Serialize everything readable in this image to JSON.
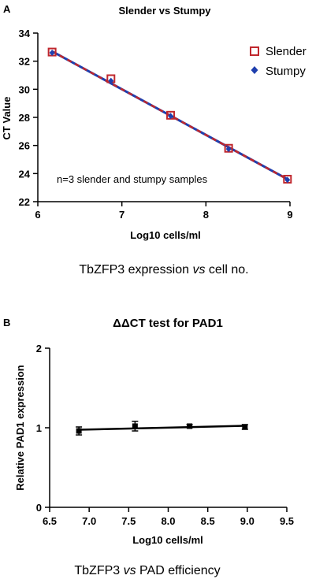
{
  "figure": {
    "caption_a_pre": "TbZFP3 expression ",
    "caption_a_em": "vs",
    "caption_a_post": " cell no.",
    "caption_b_pre": "TbZFP3 ",
    "caption_b_em": "vs",
    "caption_b_post": " PAD efficiency"
  },
  "chart_data": [
    {
      "panel_label": "A",
      "type": "scatter",
      "title": "Slender vs Stumpy",
      "xlabel": "Log10 cells/ml",
      "ylabel": "CT Value",
      "xlim": [
        6,
        9
      ],
      "ylim": [
        22,
        34
      ],
      "xticks": [
        6,
        7,
        8,
        9
      ],
      "yticks": [
        22,
        24,
        26,
        28,
        30,
        32,
        34
      ],
      "grid": false,
      "legend_position": "top-right",
      "annotation": "n=3 slender and stumpy samples",
      "series": [
        {
          "name": "Slender",
          "marker": "open-square",
          "color": "#c0272d",
          "x": [
            6.17,
            6.87,
            7.58,
            8.27,
            8.97
          ],
          "y": [
            32.65,
            30.75,
            28.15,
            25.8,
            23.6
          ]
        },
        {
          "name": "Stumpy",
          "marker": "diamond",
          "color": "#1f3fae",
          "x": [
            6.17,
            6.87,
            7.58,
            8.27,
            8.97
          ],
          "y": [
            32.6,
            30.6,
            28.1,
            25.75,
            23.55
          ]
        }
      ],
      "fit_line": {
        "x": [
          6.17,
          8.97
        ],
        "y": [
          32.7,
          23.6
        ],
        "colors": [
          "#1f3fae",
          "#c0272d"
        ]
      }
    },
    {
      "panel_label": "B",
      "type": "scatter",
      "title": "ΔΔCT test for PAD1",
      "xlabel": "Log10 cells/ml",
      "ylabel": "Relative PAD1 expression",
      "xlim": [
        6.5,
        9.5
      ],
      "ylim": [
        0,
        2
      ],
      "xticks": [
        "6.5",
        "7.0",
        "7.5",
        "8.0",
        "8.5",
        "9.0",
        "9.5"
      ],
      "yticks": [
        "0",
        "1",
        "2"
      ],
      "grid": false,
      "series": [
        {
          "marker": "filled-square",
          "color": "#000000",
          "x": [
            6.87,
            7.58,
            8.27,
            8.97
          ],
          "y": [
            0.96,
            1.02,
            1.02,
            1.01
          ],
          "error": [
            0.05,
            0.06,
            0.02,
            0.03
          ]
        }
      ],
      "fit_line": {
        "x": [
          6.87,
          8.97
        ],
        "y": [
          0.975,
          1.025
        ],
        "color": "#000000"
      }
    }
  ]
}
